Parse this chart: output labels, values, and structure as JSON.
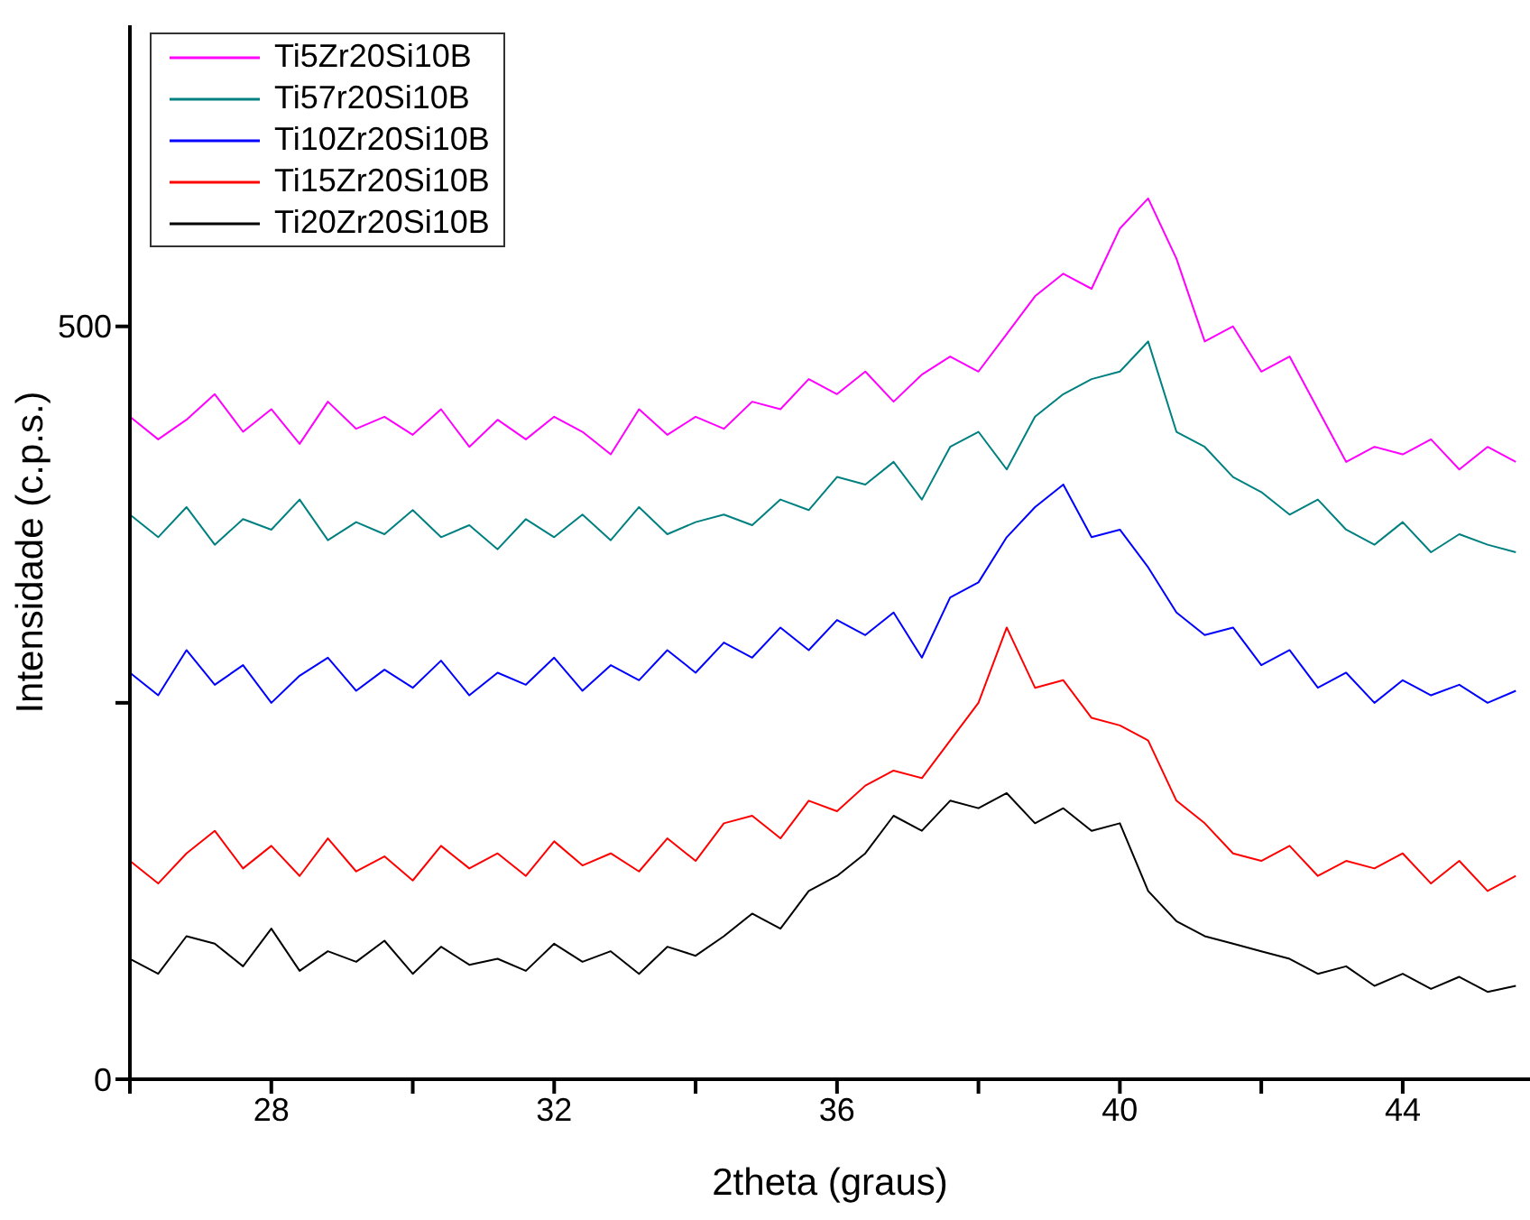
{
  "chart_data": {
    "type": "line",
    "xlabel": "2theta (graus)",
    "ylabel": "Intensidade (c.p.s.)",
    "x": [
      26,
      26.4,
      26.8,
      27.2,
      27.6,
      28,
      28.4,
      28.8,
      29.2,
      29.6,
      30,
      30.4,
      30.8,
      31.2,
      31.6,
      32,
      32.4,
      32.8,
      33.2,
      33.6,
      34,
      34.4,
      34.8,
      35.2,
      35.6,
      36,
      36.4,
      36.8,
      37.2,
      37.6,
      38,
      38.4,
      38.8,
      39.2,
      39.6,
      40,
      40.4,
      40.8,
      41.2,
      41.6,
      42,
      42.4,
      42.8,
      43.2,
      43.6,
      44,
      44.4,
      44.8,
      45.2,
      45.6
    ],
    "xlim": [
      26,
      45.8
    ],
    "xticks": [
      {
        "value": 26,
        "label": null
      },
      28,
      {
        "value": 30,
        "label": null
      },
      32,
      {
        "value": 34,
        "label": null
      },
      36,
      {
        "value": 38,
        "label": null
      },
      40,
      {
        "value": 42,
        "label": null
      },
      44
    ],
    "ylim": [
      0,
      700
    ],
    "yticks": [
      0,
      {
        "value": 250,
        "label": null
      },
      500
    ],
    "grid": false,
    "legend": "top left",
    "marker": "none",
    "line_style": "solid",
    "series": [
      {
        "name": "Ti5Zr20Si10B",
        "color": "#ff00ff",
        "values": [
          440,
          425,
          438,
          455,
          430,
          445,
          422,
          450,
          432,
          440,
          428,
          445,
          420,
          438,
          425,
          440,
          430,
          415,
          445,
          428,
          440,
          432,
          450,
          445,
          465,
          455,
          470,
          450,
          468,
          480,
          470,
          495,
          520,
          535,
          525,
          565,
          585,
          545,
          490,
          500,
          470,
          480,
          445,
          410,
          420,
          415,
          425,
          405,
          420,
          410
        ]
      },
      {
        "name": "Ti57r20Si10B",
        "color": "#008080",
        "values": [
          375,
          360,
          380,
          355,
          372,
          365,
          385,
          358,
          370,
          362,
          378,
          360,
          368,
          352,
          372,
          360,
          375,
          358,
          380,
          362,
          370,
          375,
          368,
          385,
          378,
          400,
          395,
          410,
          385,
          420,
          430,
          405,
          440,
          455,
          465,
          470,
          490,
          430,
          420,
          400,
          390,
          375,
          385,
          365,
          355,
          370,
          350,
          362,
          355,
          350
        ]
      },
      {
        "name": "Ti10Zr20Si10B",
        "color": "#0000ff",
        "values": [
          270,
          255,
          285,
          262,
          275,
          250,
          268,
          280,
          258,
          272,
          260,
          278,
          255,
          270,
          262,
          280,
          258,
          275,
          265,
          285,
          270,
          290,
          280,
          300,
          285,
          305,
          295,
          310,
          280,
          320,
          330,
          360,
          380,
          395,
          360,
          365,
          340,
          310,
          295,
          300,
          275,
          285,
          260,
          270,
          250,
          265,
          255,
          262,
          250,
          258
        ]
      },
      {
        "name": "Ti15Zr20Si10B",
        "color": "#ff0000",
        "values": [
          145,
          130,
          150,
          165,
          140,
          155,
          135,
          160,
          138,
          148,
          132,
          155,
          140,
          150,
          135,
          158,
          142,
          150,
          138,
          160,
          145,
          170,
          175,
          160,
          185,
          178,
          195,
          205,
          200,
          225,
          250,
          300,
          260,
          265,
          240,
          235,
          225,
          185,
          170,
          150,
          145,
          155,
          135,
          145,
          140,
          150,
          130,
          145,
          125,
          135
        ]
      },
      {
        "name": "Ti20Zr20Si10B",
        "color": "#000000",
        "values": [
          80,
          70,
          95,
          90,
          75,
          100,
          72,
          85,
          78,
          92,
          70,
          88,
          76,
          80,
          72,
          90,
          78,
          85,
          70,
          88,
          82,
          95,
          110,
          100,
          125,
          135,
          150,
          175,
          165,
          185,
          180,
          190,
          170,
          180,
          165,
          170,
          125,
          105,
          95,
          90,
          85,
          80,
          70,
          75,
          62,
          70,
          60,
          68,
          58,
          62
        ]
      }
    ]
  }
}
